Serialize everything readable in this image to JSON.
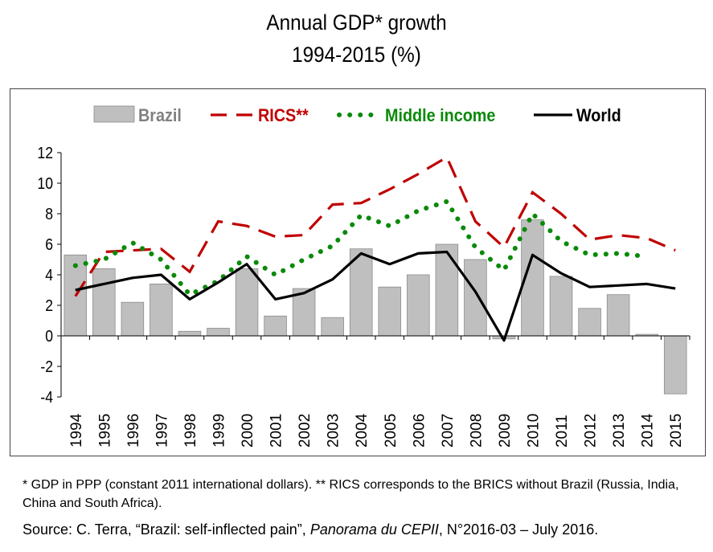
{
  "title_line1": "Annual GDP* growth",
  "title_line2": "1994-2015 (%)",
  "footnote": "* GDP in PPP (constant 2011 international dollars). ** RICS corresponds to the BRICS without Brazil (Russia, India, China and South Africa).",
  "source": {
    "prefix": "Source: C. Terra, “Brazil: self-inflected pain”, ",
    "publication": "Panorama du CEPII",
    "suffix": ", N°2016-03 – July 2016."
  },
  "colors": {
    "brazil": "#bfbfbf",
    "brazil_edge": "#8c8c8c",
    "rics": "#c00000",
    "middle_income": "#0a8a0a",
    "world": "#000000"
  },
  "chart_data": {
    "type": "bar",
    "title": "Annual GDP* growth 1994-2015 (%)",
    "categories": [
      "1994",
      "1995",
      "1996",
      "1997",
      "1998",
      "1999",
      "2000",
      "2001",
      "2002",
      "2003",
      "2004",
      "2005",
      "2006",
      "2007",
      "2008",
      "2009",
      "2010",
      "2011",
      "2012",
      "2013",
      "2014",
      "2015"
    ],
    "ylim": [
      -4,
      12
    ],
    "yticks": [
      -4,
      -2,
      0,
      2,
      4,
      6,
      8,
      10,
      12
    ],
    "grid": false,
    "legend_position": "top",
    "series": [
      {
        "name": "Brazil",
        "kind": "bar",
        "values": [
          5.3,
          4.4,
          2.2,
          3.4,
          0.3,
          0.5,
          4.4,
          1.3,
          3.1,
          1.2,
          5.7,
          3.2,
          4.0,
          6.0,
          5.0,
          -0.2,
          7.6,
          3.9,
          1.8,
          2.7,
          0.1,
          -3.8
        ]
      },
      {
        "name": "RICS**",
        "kind": "line",
        "style": "dashed",
        "values": [
          2.6,
          5.5,
          5.6,
          5.7,
          4.2,
          7.5,
          7.2,
          6.5,
          6.6,
          8.6,
          8.7,
          9.6,
          10.6,
          11.7,
          7.5,
          5.8,
          9.4,
          8.0,
          6.3,
          6.6,
          6.4,
          5.6
        ]
      },
      {
        "name": "Middle income",
        "kind": "line",
        "style": "dotted",
        "values": [
          4.6,
          5.0,
          6.1,
          5.0,
          2.7,
          3.6,
          5.2,
          4.0,
          5.0,
          5.9,
          7.9,
          7.2,
          8.2,
          8.8,
          5.8,
          4.3,
          8.0,
          6.2,
          5.3,
          5.4,
          5.2,
          null
        ]
      },
      {
        "name": "World",
        "kind": "line",
        "style": "solid",
        "values": [
          3.0,
          3.4,
          3.8,
          4.0,
          2.4,
          3.5,
          4.7,
          2.4,
          2.8,
          3.7,
          5.4,
          4.7,
          5.4,
          5.5,
          2.9,
          -0.3,
          5.3,
          4.1,
          3.2,
          3.3,
          3.4,
          3.1
        ]
      }
    ]
  }
}
